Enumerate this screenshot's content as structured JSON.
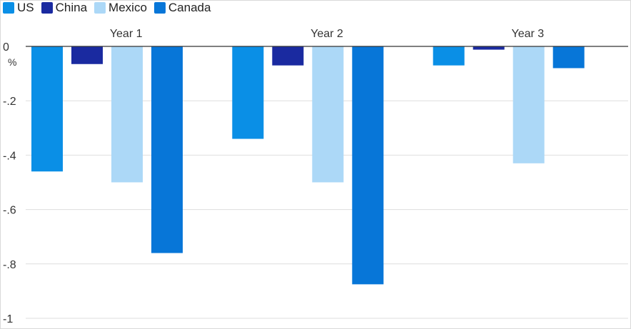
{
  "chart_data": {
    "type": "bar",
    "categories": [
      "Year 1",
      "Year 2",
      "Year 3"
    ],
    "series": [
      {
        "name": "US",
        "color": "#0a8fe6",
        "values": [
          -0.46,
          -0.34,
          -0.07
        ]
      },
      {
        "name": "China",
        "color": "#1a2aa0",
        "values": [
          -0.065,
          -0.07,
          -0.012
        ]
      },
      {
        "name": "Mexico",
        "color": "#acd8f7",
        "values": [
          -0.5,
          -0.5,
          -0.43
        ]
      },
      {
        "name": "Canada",
        "color": "#0776d8",
        "values": [
          -0.76,
          -0.875,
          -0.08
        ]
      }
    ],
    "ylim": [
      -1,
      0
    ],
    "yticks": [
      0,
      -0.2,
      -0.4,
      -0.6,
      -0.8,
      -1
    ],
    "ytick_labels": [
      "0",
      "-.2",
      "-.4",
      "-.6",
      "-.8",
      "-1"
    ],
    "yunit": "%",
    "grid": true,
    "legend": "top-left"
  }
}
